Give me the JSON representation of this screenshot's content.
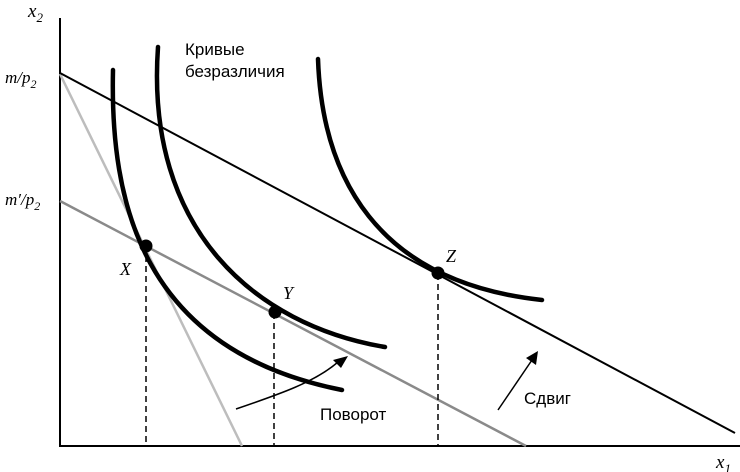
{
  "axes": {
    "y_label": "x",
    "y_label_sub": "2",
    "x_label": "x",
    "x_label_sub": "1",
    "m_tick": "m/p",
    "m_tick_sub": "2",
    "m_prime_tick": "m′/p",
    "m_prime_tick_sub": "2"
  },
  "labels": {
    "indifference_line1": "Кривые",
    "indifference_line2": "безразличия",
    "rotation": "Поворот",
    "shift": "Сдвиг"
  },
  "points": {
    "x": "X",
    "y": "Y",
    "z": "Z"
  },
  "colors": {
    "original_budget": "#000000",
    "rotated_budget": "#bdbdbd",
    "shifted_budget": "#8a8a8a",
    "indifference": "#000000"
  }
}
